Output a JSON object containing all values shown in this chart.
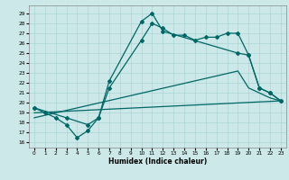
{
  "xlabel": "Humidex (Indice chaleur)",
  "bg_color": "#cce8e8",
  "grid_color": "#aad4d4",
  "line_color": "#006666",
  "xlim": [
    -0.5,
    23.5
  ],
  "ylim": [
    15.5,
    29.8
  ],
  "yticks": [
    16,
    17,
    18,
    19,
    20,
    21,
    22,
    23,
    24,
    25,
    26,
    27,
    28,
    29
  ],
  "xticks": [
    0,
    1,
    2,
    3,
    4,
    5,
    6,
    7,
    8,
    9,
    10,
    11,
    12,
    13,
    14,
    15,
    16,
    17,
    18,
    19,
    20,
    21,
    22,
    23
  ],
  "line1_x": [
    0,
    1,
    2,
    3,
    4,
    5,
    6,
    7,
    10,
    11,
    12,
    13,
    14,
    15,
    16,
    17,
    18,
    19,
    20,
    21,
    22,
    23
  ],
  "line1_y": [
    19.5,
    19.0,
    18.5,
    17.8,
    16.5,
    17.2,
    18.5,
    21.5,
    26.3,
    28.0,
    27.5,
    26.8,
    26.8,
    26.3,
    26.6,
    26.6,
    27.0,
    27.0,
    24.8,
    21.5,
    21.0,
    20.2
  ],
  "line2_x": [
    0,
    3,
    5,
    6,
    7,
    10,
    11,
    12,
    19,
    20,
    21,
    22,
    23
  ],
  "line2_y": [
    19.5,
    18.5,
    17.8,
    18.5,
    22.2,
    28.2,
    29.0,
    27.2,
    25.0,
    24.8,
    21.5,
    21.0,
    20.2
  ],
  "line3_x": [
    0,
    23
  ],
  "line3_y": [
    19.0,
    20.2
  ],
  "line4_x": [
    0,
    19,
    20,
    21,
    22,
    23
  ],
  "line4_y": [
    18.5,
    23.2,
    21.5,
    21.0,
    20.5,
    20.2
  ]
}
